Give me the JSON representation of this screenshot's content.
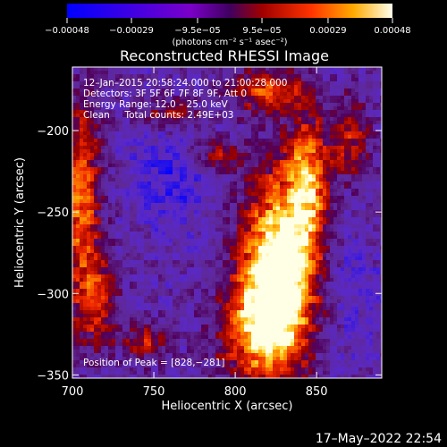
{
  "chart_data": {
    "type": "heatmap",
    "title": "Reconstructed RHESSI Image",
    "xlabel": "Heliocentric X (arcsec)",
    "ylabel": "Heliocentric Y (arcsec)",
    "xlim": [
      700,
      890
    ],
    "ylim": [
      -352,
      -161
    ],
    "x_ticks": [
      700,
      750,
      800,
      850
    ],
    "y_ticks": [
      -200,
      -250,
      -300,
      -350
    ],
    "x_tick_labels": [
      "700",
      "750",
      "800",
      "850"
    ],
    "y_tick_labels": [
      "−200",
      "−250",
      "−300",
      "−350"
    ],
    "colorbar": {
      "min": -0.00048,
      "max": 0.00048,
      "tick_values": [
        -0.00048,
        -0.00029,
        -9.5e-05,
        9.5e-05,
        0.00029,
        0.00048
      ],
      "tick_labels": [
        "−0.00048",
        "−0.00029",
        "−9.5e−05",
        "9.5e−05",
        "0.00029",
        "0.00048"
      ],
      "units_label": "(photons cm⁻² s⁻¹ asec⁻²)"
    },
    "annotations": [
      "12–Jan–2015 20:58:24.000 to 21:00:28.000",
      "Detectors: 3F 5F 6F 7F 8F 9F, Att 0",
      "Energy Range: 12.0 – 25.0 keV",
      "Clean     Total counts: 2.49E+03",
      "Position of Peak = [828,−281]"
    ],
    "peak": {
      "x": 828,
      "y": -281
    },
    "total_counts": 2490,
    "energy_range_kev": [
      12.0,
      25.0
    ]
  },
  "footer": {
    "timestamp": "17–May–2022 22:54"
  }
}
